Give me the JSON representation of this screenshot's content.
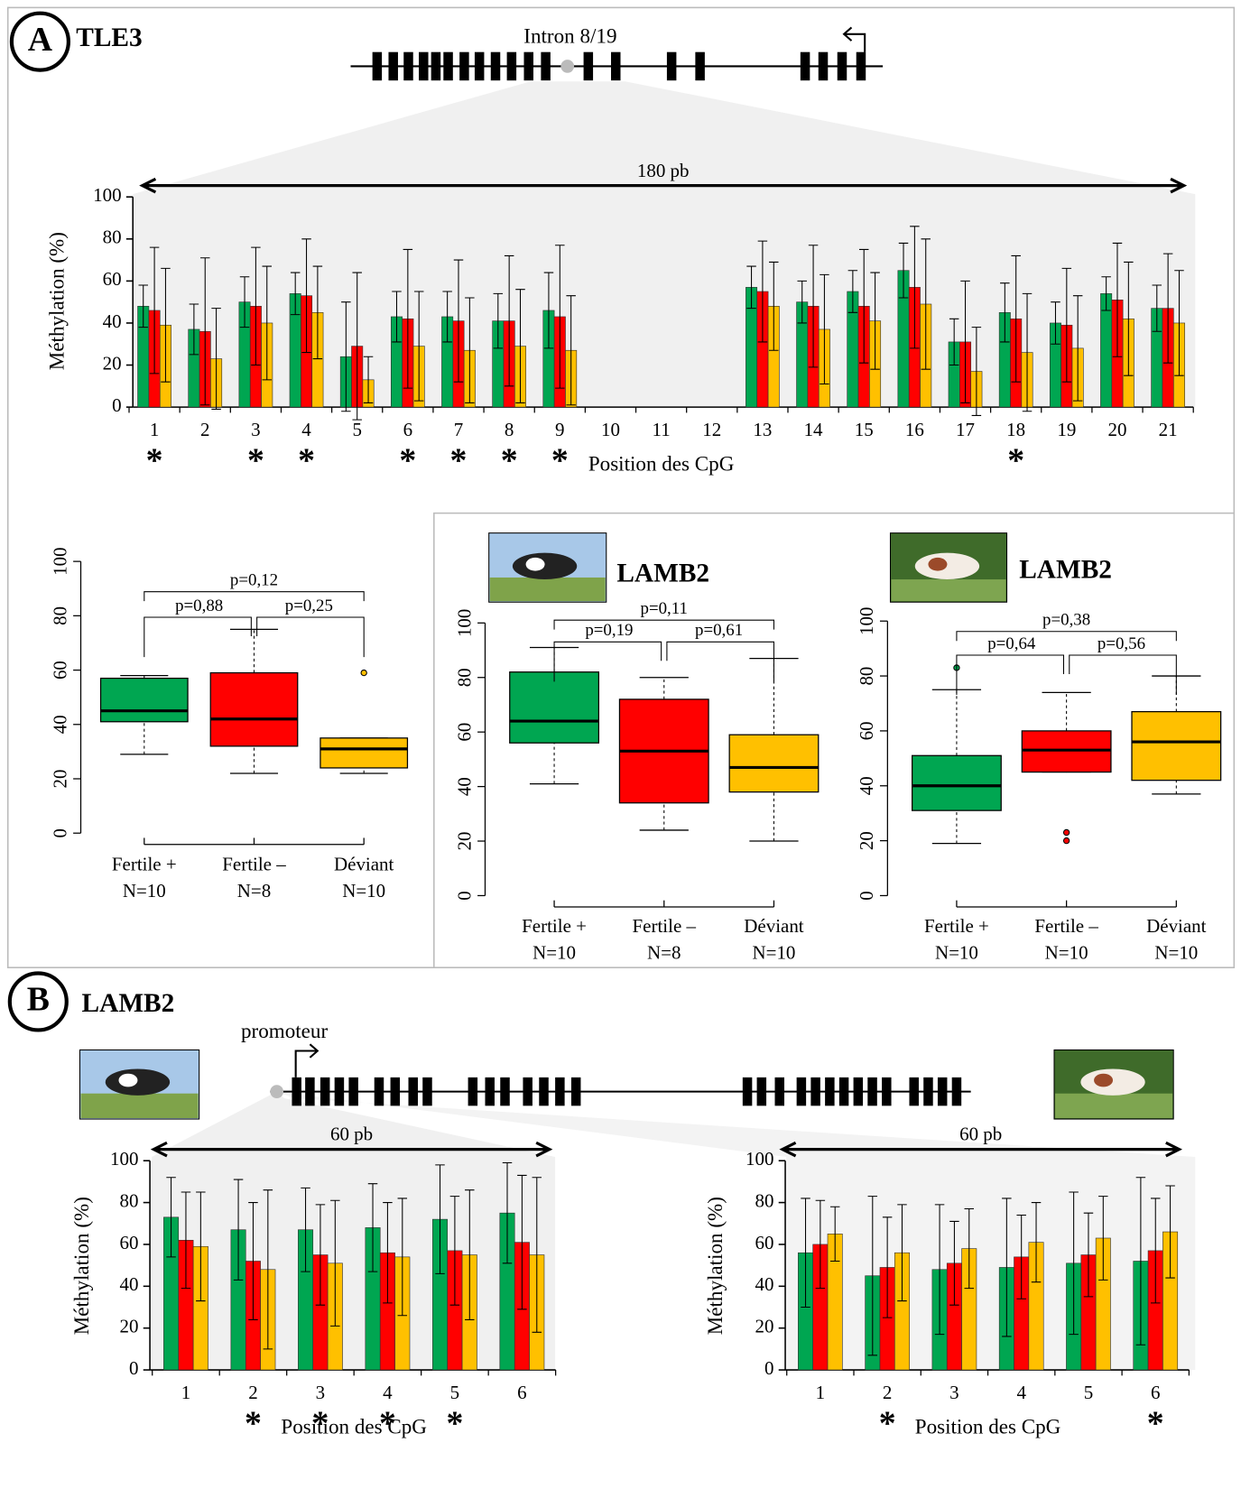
{
  "labels": {
    "panel_a": "A",
    "gene_a": "TLE3",
    "intron": "Intron 8/19",
    "panel_b": "B",
    "gene_b": "LAMB2",
    "promoter": "promoteur"
  },
  "chart_data": [
    {
      "type": "bar",
      "annotation": "180 pb",
      "xlabel": "Position des CpG",
      "ylabel": "Méthylation (%)",
      "categories": [
        "1",
        "2",
        "3",
        "4",
        "5",
        "6",
        "7",
        "8",
        "9",
        "10",
        "11",
        "12",
        "13",
        "14",
        "15",
        "16",
        "17",
        "18",
        "19",
        "20",
        "21"
      ],
      "series": [
        {
          "color": "#00a651",
          "values": [
            48,
            37,
            50,
            54,
            24,
            43,
            43,
            41,
            46,
            null,
            null,
            null,
            57,
            50,
            55,
            65,
            31,
            45,
            40,
            54,
            47
          ],
          "errors": [
            10,
            12,
            12,
            10,
            26,
            12,
            12,
            13,
            18,
            null,
            null,
            null,
            10,
            10,
            10,
            13,
            11,
            14,
            10,
            8,
            11
          ]
        },
        {
          "color": "#ff0000",
          "values": [
            46,
            36,
            48,
            53,
            29,
            42,
            41,
            41,
            43,
            null,
            null,
            null,
            55,
            48,
            48,
            57,
            31,
            42,
            39,
            51,
            47
          ],
          "errors": [
            30,
            35,
            28,
            27,
            35,
            33,
            29,
            31,
            34,
            null,
            null,
            null,
            24,
            29,
            27,
            29,
            29,
            30,
            27,
            27,
            26
          ]
        },
        {
          "color": "#ffc000",
          "values": [
            39,
            23,
            40,
            45,
            13,
            29,
            27,
            29,
            27,
            null,
            null,
            null,
            48,
            37,
            41,
            49,
            17,
            26,
            28,
            42,
            40
          ],
          "errors": [
            27,
            24,
            27,
            22,
            11,
            26,
            25,
            27,
            26,
            null,
            null,
            null,
            21,
            26,
            23,
            31,
            21,
            28,
            25,
            27,
            25
          ]
        }
      ],
      "significance": [
        "*",
        null,
        "*",
        "*",
        null,
        "*",
        "*",
        "*",
        "*",
        null,
        null,
        null,
        null,
        null,
        null,
        null,
        null,
        "*",
        null,
        null,
        null
      ],
      "ylim": [
        0,
        100
      ],
      "yticks": [
        0,
        20,
        40,
        60,
        80,
        100
      ]
    },
    {
      "type": "box",
      "categories": [
        "Fertile +",
        "Fertile –",
        "Déviant"
      ],
      "sample_sizes": [
        "N=10",
        "N=8",
        "N=10"
      ],
      "boxes": [
        {
          "color": "#00a651",
          "min": 29,
          "q1": 41,
          "median": 45,
          "q3": 57,
          "max": 58,
          "outliers": []
        },
        {
          "color": "#ff0000",
          "min": 22,
          "q1": 32,
          "median": 42,
          "q3": 59,
          "max": 75,
          "outliers": []
        },
        {
          "color": "#ffc000",
          "min": 22,
          "q1": 24,
          "median": 31,
          "q3": 35,
          "max": 35,
          "outliers": [
            59
          ]
        }
      ],
      "p_values": [
        "p=0,12",
        "p=0,88",
        "p=0,25"
      ],
      "ylim": [
        0,
        100
      ],
      "yticks": [
        0,
        20,
        40,
        60,
        80,
        100
      ]
    },
    {
      "type": "box",
      "title": "LAMB2",
      "categories": [
        "Fertile +",
        "Fertile –",
        "Déviant"
      ],
      "sample_sizes": [
        "N=10",
        "N=8",
        "N=10"
      ],
      "boxes": [
        {
          "color": "#00a651",
          "min": 41,
          "q1": 56,
          "median": 64,
          "q3": 82,
          "max": 91,
          "outliers": []
        },
        {
          "color": "#ff0000",
          "min": 24,
          "q1": 34,
          "median": 53,
          "q3": 72,
          "max": 80,
          "outliers": []
        },
        {
          "color": "#ffc000",
          "min": 20,
          "q1": 38,
          "median": 47,
          "q3": 59,
          "max": 87,
          "outliers": []
        }
      ],
      "p_values": [
        "p=0,11",
        "p=0,19",
        "p=0,61"
      ],
      "ylim": [
        0,
        100
      ],
      "yticks": [
        0,
        20,
        40,
        60,
        80,
        100
      ]
    },
    {
      "type": "box",
      "title": "LAMB2",
      "categories": [
        "Fertile +",
        "Fertile –",
        "Déviant"
      ],
      "sample_sizes": [
        "N=10",
        "N=10",
        "N=10"
      ],
      "boxes": [
        {
          "color": "#00a651",
          "min": 19,
          "q1": 31,
          "median": 40,
          "q3": 51,
          "max": 75,
          "outliers": [
            83
          ]
        },
        {
          "color": "#ff0000",
          "min": 45,
          "q1": 45,
          "median": 53,
          "q3": 60,
          "max": 74,
          "outliers": [
            23,
            20
          ]
        },
        {
          "color": "#ffc000",
          "min": 37,
          "q1": 42,
          "median": 56,
          "q3": 67,
          "max": 80,
          "outliers": []
        }
      ],
      "p_values": [
        "p=0,38",
        "p=0,64",
        "p=0,56"
      ],
      "ylim": [
        0,
        100
      ],
      "yticks": [
        0,
        20,
        40,
        60,
        80,
        100
      ]
    },
    {
      "type": "bar",
      "annotation": "60 pb",
      "xlabel": "Position des CpG",
      "ylabel": "Méthylation (%)",
      "categories": [
        "1",
        "2",
        "3",
        "4",
        "5",
        "6"
      ],
      "series": [
        {
          "color": "#00a651",
          "values": [
            73,
            67,
            67,
            68,
            72,
            75
          ],
          "errors": [
            19,
            24,
            20,
            21,
            26,
            24
          ]
        },
        {
          "color": "#ff0000",
          "values": [
            62,
            52,
            55,
            56,
            57,
            61
          ],
          "errors": [
            23,
            28,
            24,
            24,
            26,
            32
          ]
        },
        {
          "color": "#ffc000",
          "values": [
            59,
            48,
            51,
            54,
            55,
            55
          ],
          "errors": [
            26,
            38,
            30,
            28,
            31,
            37
          ]
        }
      ],
      "significance": [
        null,
        "*",
        "*",
        "*",
        "*",
        null
      ],
      "ylim": [
        0,
        100
      ],
      "yticks": [
        0,
        20,
        40,
        60,
        80,
        100
      ]
    },
    {
      "type": "bar",
      "annotation": "60 pb",
      "xlabel": "Position des CpG",
      "ylabel": "Méthylation (%)",
      "categories": [
        "1",
        "2",
        "3",
        "4",
        "5",
        "6"
      ],
      "series": [
        {
          "color": "#00a651",
          "values": [
            56,
            45,
            48,
            49,
            51,
            52
          ],
          "errors": [
            26,
            38,
            31,
            33,
            34,
            40
          ]
        },
        {
          "color": "#ff0000",
          "values": [
            60,
            49,
            51,
            54,
            55,
            57
          ],
          "errors": [
            21,
            24,
            20,
            20,
            20,
            25
          ]
        },
        {
          "color": "#ffc000",
          "values": [
            65,
            56,
            58,
            61,
            63,
            66
          ],
          "errors": [
            13,
            23,
            19,
            19,
            20,
            22
          ]
        }
      ],
      "significance": [
        null,
        "*",
        null,
        null,
        null,
        "*"
      ],
      "ylim": [
        0,
        100
      ],
      "yticks": [
        0,
        20,
        40,
        60,
        80,
        100
      ]
    }
  ]
}
